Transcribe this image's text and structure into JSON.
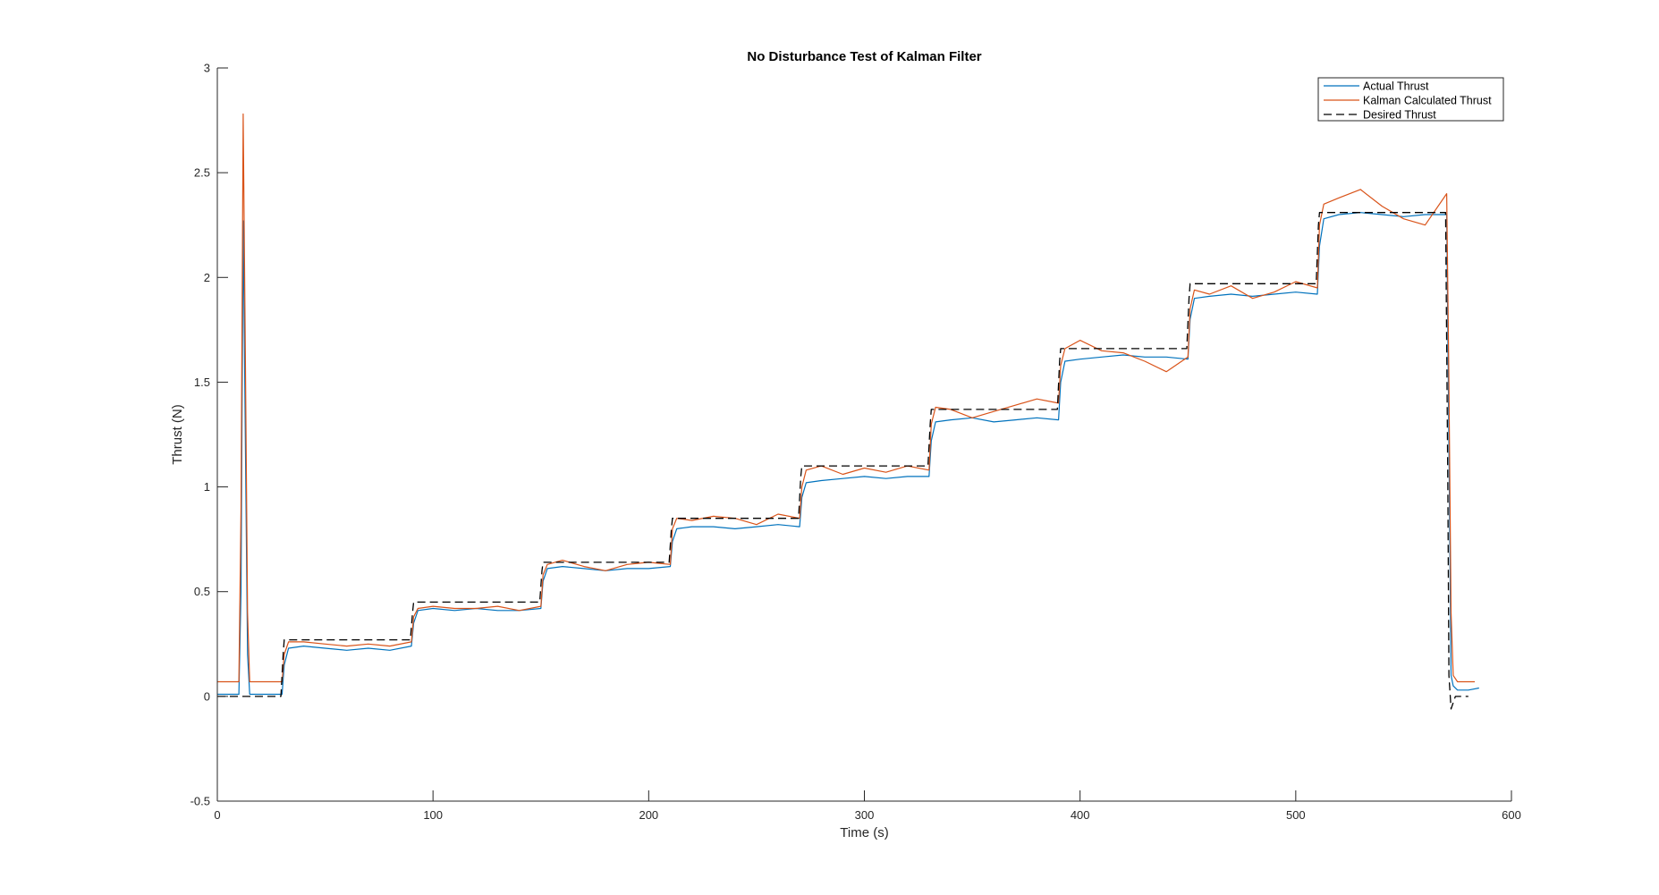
{
  "chart_data": {
    "type": "line",
    "title": "No Disturbance Test of Kalman Filter",
    "xlabel": "Time (s)",
    "ylabel": "Thrust (N)",
    "xlim": [
      0,
      600
    ],
    "ylim": [
      -0.5,
      3
    ],
    "xticks": [
      0,
      100,
      200,
      300,
      400,
      500,
      600
    ],
    "xtick_labels": [
      "0",
      "100",
      "200",
      "300",
      "400",
      "500",
      "600"
    ],
    "yticks": [
      -0.5,
      0,
      0.5,
      1,
      1.5,
      2,
      2.5,
      3
    ],
    "ytick_labels": [
      "-0.5",
      "0",
      "0.5",
      "1",
      "1.5",
      "2",
      "2.5",
      "3"
    ],
    "grid": false,
    "legend_position": "top-right",
    "colors": {
      "actual": "#0072BD",
      "kalman": "#D95319",
      "desired": "#000000"
    },
    "series": [
      {
        "name": "Actual Thrust",
        "style": "solid",
        "x": [
          0,
          5,
          10,
          11,
          12,
          13,
          14,
          15,
          20,
          30,
          31,
          33,
          40,
          50,
          60,
          70,
          80,
          90,
          91,
          93,
          100,
          110,
          120,
          130,
          140,
          150,
          151,
          153,
          160,
          170,
          180,
          190,
          200,
          210,
          211,
          213,
          220,
          230,
          240,
          250,
          260,
          270,
          271,
          273,
          280,
          290,
          300,
          310,
          320,
          330,
          331,
          333,
          340,
          350,
          360,
          370,
          380,
          390,
          391,
          393,
          400,
          410,
          420,
          430,
          440,
          450,
          451,
          453,
          460,
          470,
          480,
          490,
          500,
          510,
          511,
          513,
          520,
          530,
          540,
          550,
          560,
          570,
          571,
          572,
          573,
          575,
          580,
          585
        ],
        "y": [
          0.01,
          0.01,
          0.01,
          0.5,
          2.27,
          1.2,
          0.2,
          0.01,
          0.01,
          0.01,
          0.15,
          0.23,
          0.24,
          0.23,
          0.22,
          0.23,
          0.22,
          0.24,
          0.35,
          0.41,
          0.42,
          0.41,
          0.42,
          0.41,
          0.41,
          0.42,
          0.55,
          0.61,
          0.62,
          0.61,
          0.6,
          0.61,
          0.61,
          0.62,
          0.74,
          0.8,
          0.81,
          0.81,
          0.8,
          0.81,
          0.82,
          0.81,
          0.95,
          1.02,
          1.03,
          1.04,
          1.05,
          1.04,
          1.05,
          1.05,
          1.22,
          1.31,
          1.32,
          1.33,
          1.31,
          1.32,
          1.33,
          1.32,
          1.5,
          1.6,
          1.61,
          1.62,
          1.63,
          1.62,
          1.62,
          1.61,
          1.8,
          1.9,
          1.91,
          1.92,
          1.91,
          1.92,
          1.93,
          1.92,
          2.15,
          2.28,
          2.3,
          2.31,
          2.3,
          2.29,
          2.3,
          2.3,
          1.2,
          0.1,
          0.05,
          0.03,
          0.03,
          0.04
        ]
      },
      {
        "name": "Kalman Calculated Thrust",
        "style": "solid",
        "x": [
          0,
          5,
          10,
          11,
          12,
          13,
          14,
          15,
          20,
          30,
          31,
          33,
          40,
          50,
          60,
          70,
          80,
          90,
          91,
          93,
          100,
          110,
          120,
          130,
          140,
          150,
          151,
          153,
          160,
          170,
          180,
          190,
          200,
          210,
          211,
          213,
          220,
          230,
          240,
          250,
          260,
          270,
          271,
          273,
          280,
          290,
          300,
          310,
          320,
          330,
          331,
          333,
          340,
          350,
          360,
          370,
          380,
          390,
          391,
          393,
          400,
          410,
          420,
          430,
          440,
          450,
          451,
          453,
          460,
          470,
          480,
          490,
          500,
          510,
          511,
          513,
          520,
          530,
          540,
          550,
          560,
          570,
          571,
          572,
          573,
          575,
          580,
          583
        ],
        "y": [
          0.07,
          0.07,
          0.07,
          0.9,
          2.78,
          1.6,
          0.4,
          0.07,
          0.07,
          0.07,
          0.2,
          0.26,
          0.26,
          0.25,
          0.24,
          0.25,
          0.24,
          0.26,
          0.38,
          0.42,
          0.43,
          0.42,
          0.42,
          0.43,
          0.41,
          0.43,
          0.58,
          0.63,
          0.65,
          0.62,
          0.6,
          0.63,
          0.64,
          0.63,
          0.8,
          0.85,
          0.84,
          0.86,
          0.85,
          0.82,
          0.87,
          0.85,
          1.0,
          1.08,
          1.1,
          1.06,
          1.09,
          1.07,
          1.1,
          1.08,
          1.3,
          1.38,
          1.37,
          1.33,
          1.36,
          1.39,
          1.42,
          1.4,
          1.58,
          1.66,
          1.7,
          1.65,
          1.64,
          1.6,
          1.55,
          1.62,
          1.85,
          1.94,
          1.92,
          1.96,
          1.9,
          1.93,
          1.98,
          1.95,
          2.25,
          2.35,
          2.38,
          2.42,
          2.34,
          2.28,
          2.25,
          2.4,
          1.5,
          0.4,
          0.1,
          0.07,
          0.07,
          0.07
        ]
      },
      {
        "name": "Desired Thrust",
        "style": "dashed",
        "x": [
          0,
          29.5,
          30.5,
          31,
          89.5,
          90.5,
          91,
          149.5,
          150.5,
          151,
          209.5,
          210.5,
          211,
          269.5,
          270.5,
          271,
          329.5,
          330.5,
          331,
          389.5,
          390.5,
          391,
          449.5,
          450.5,
          451,
          509.5,
          510.5,
          511,
          569.5,
          570.5,
          571,
          572,
          574,
          580
        ],
        "y": [
          0,
          0,
          0.2,
          0.27,
          0.27,
          0.4,
          0.45,
          0.45,
          0.6,
          0.64,
          0.64,
          0.8,
          0.85,
          0.85,
          1.05,
          1.1,
          1.1,
          1.3,
          1.37,
          1.37,
          1.6,
          1.66,
          1.66,
          1.9,
          1.97,
          1.97,
          2.25,
          2.31,
          2.31,
          1.0,
          0.1,
          -0.06,
          0,
          0
        ]
      }
    ]
  }
}
